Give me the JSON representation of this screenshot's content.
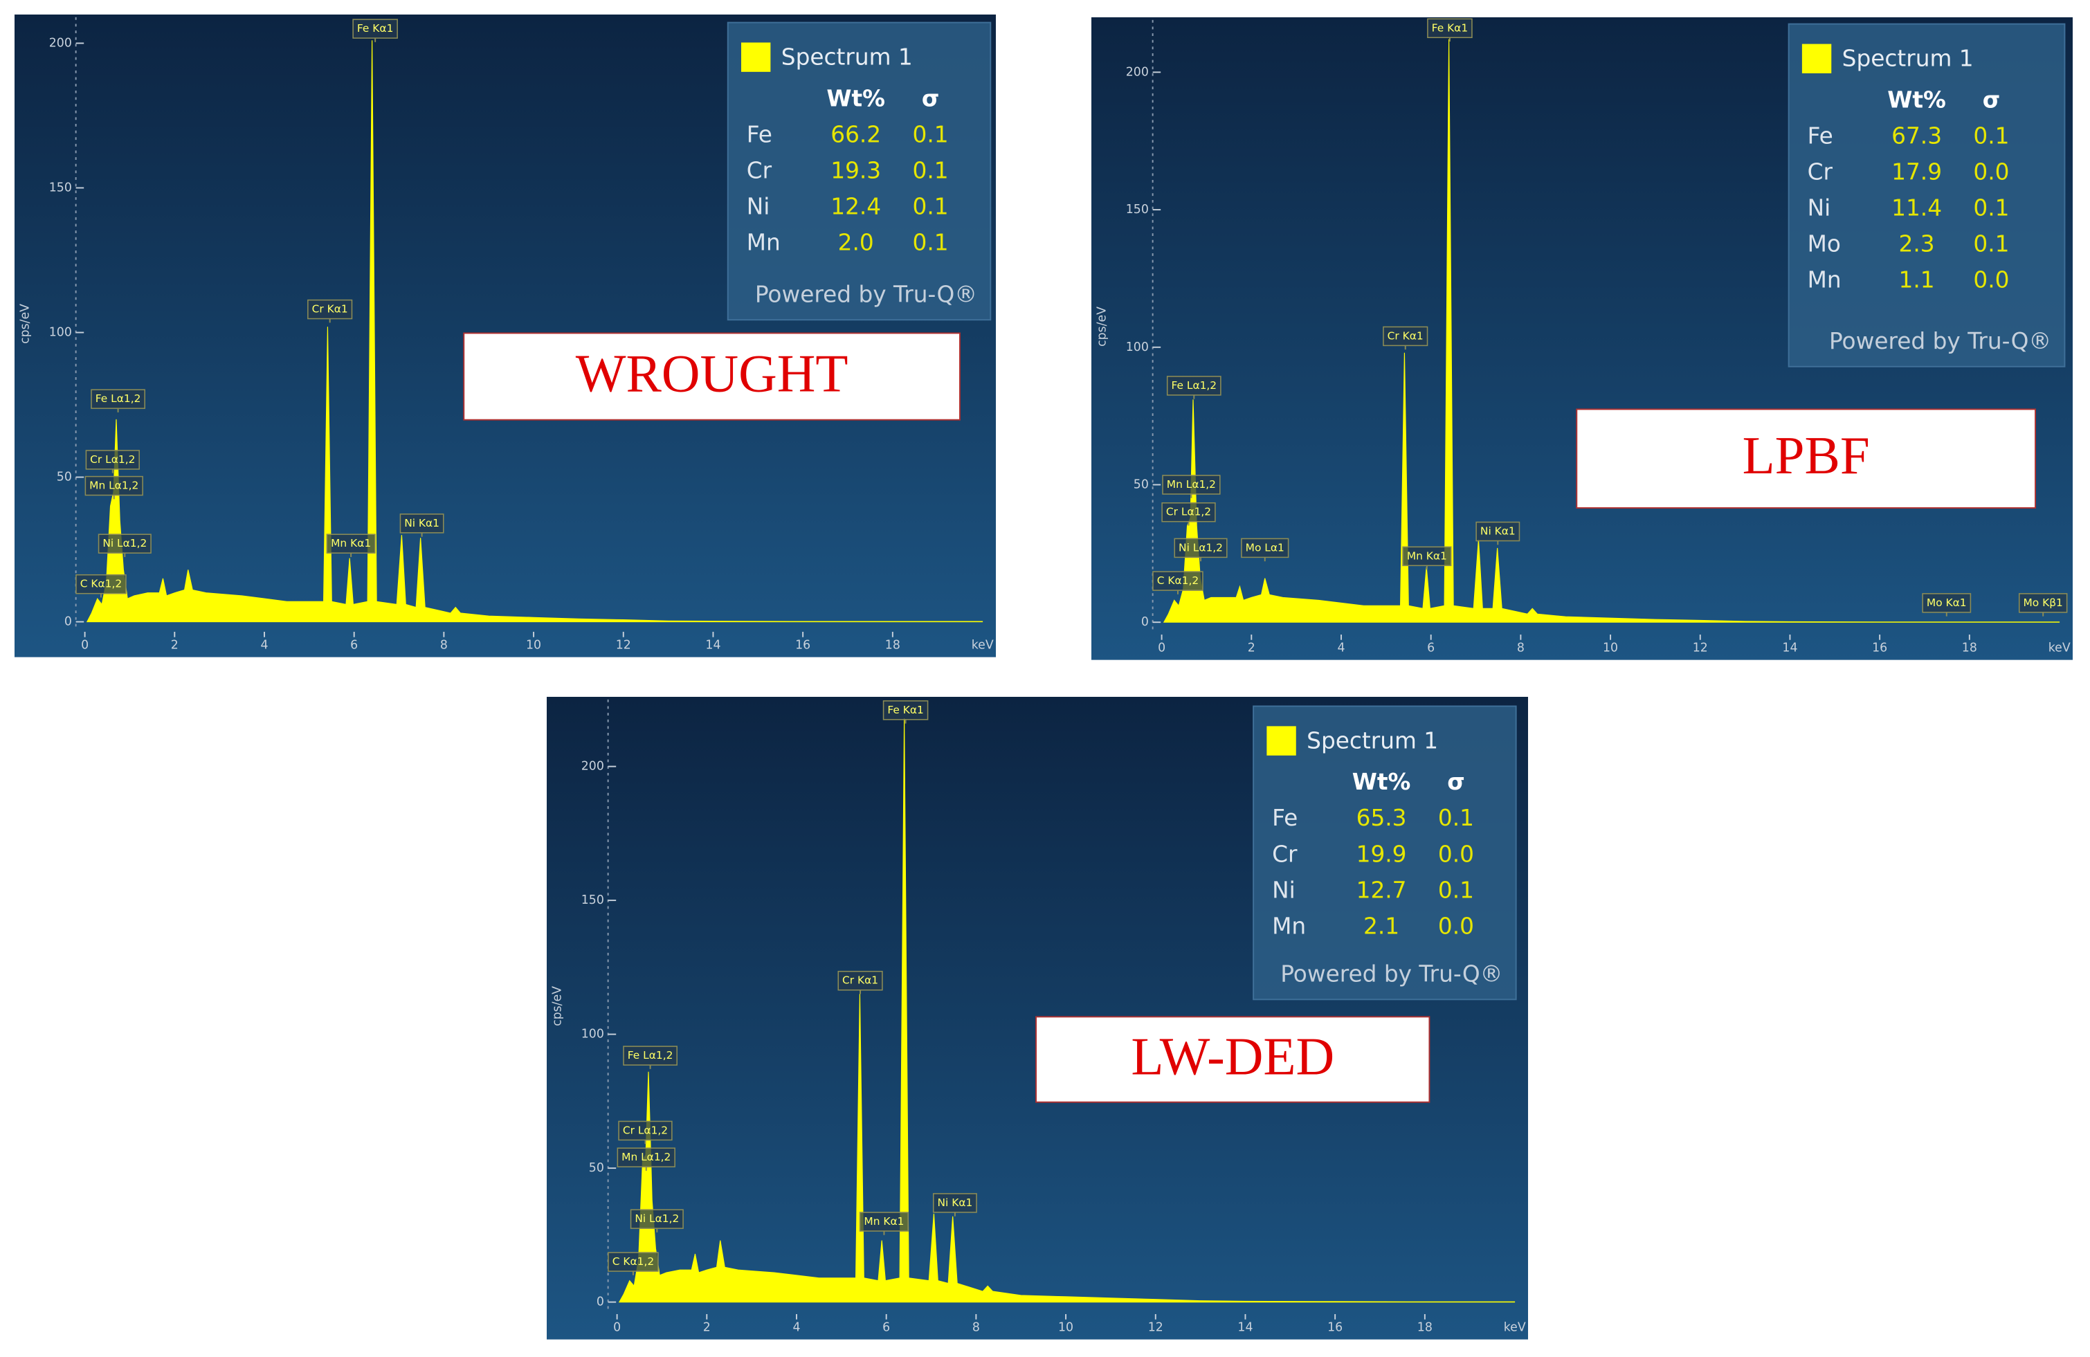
{
  "chart_data": [
    {
      "type": "area",
      "label": "WROUGHT",
      "xlabel": "keV",
      "ylabel": "cps/eV",
      "xlim": [
        -0.2,
        20.3
      ],
      "ylim": [
        -3,
        209
      ],
      "xticks": [
        0,
        2,
        4,
        6,
        8,
        10,
        12,
        14,
        16,
        18
      ],
      "yticks": [
        0,
        50,
        100,
        150,
        200
      ],
      "x": [
        0.05,
        0.15,
        0.28,
        0.38,
        0.48,
        0.57,
        0.64,
        0.7,
        0.78,
        0.86,
        0.95,
        1.1,
        1.4,
        1.66,
        1.74,
        1.82,
        2.0,
        2.22,
        2.3,
        2.4,
        2.7,
        3.5,
        4.5,
        5.32,
        5.41,
        5.5,
        5.82,
        5.9,
        5.98,
        6.3,
        6.4,
        6.5,
        6.95,
        7.06,
        7.15,
        7.38,
        7.48,
        7.58,
        8.15,
        8.26,
        8.37,
        9,
        10,
        11,
        12,
        13,
        14,
        16,
        18,
        20
      ],
      "series": [
        {
          "name": "Spectrum 1",
          "color": "#ffff00",
          "values": [
            0,
            3,
            8,
            6,
            14,
            40,
            45,
            70,
            35,
            18,
            8,
            9,
            10,
            10,
            15,
            9,
            10,
            11,
            18,
            11,
            10,
            9,
            7,
            7,
            102,
            7,
            6,
            22,
            6,
            7,
            201,
            7,
            6,
            30,
            6,
            5,
            29,
            5,
            3,
            5,
            3,
            2,
            1.5,
            1,
            0.7,
            0.3,
            0.2,
            0.1,
            0.1,
            0.1
          ]
        }
      ],
      "annotations": [
        {
          "text": "Fe Kα1",
          "x": 6.47,
          "y": 205
        },
        {
          "text": "Cr Kα1",
          "x": 5.46,
          "y": 108
        },
        {
          "text": "Fe Lα1,2",
          "x": 0.74,
          "y": 77
        },
        {
          "text": "Cr Lα1,2",
          "x": 0.62,
          "y": 56
        },
        {
          "text": "Mn Lα1,2",
          "x": 0.65,
          "y": 47
        },
        {
          "text": "Ni Lα1,2",
          "x": 0.89,
          "y": 27
        },
        {
          "text": "C Kα1,2",
          "x": 0.36,
          "y": 13
        },
        {
          "text": "Mn Kα1",
          "x": 5.93,
          "y": 27
        },
        {
          "text": "Ni Kα1",
          "x": 7.51,
          "y": 34
        }
      ],
      "table": {
        "columns": [
          "Wt%",
          "σ"
        ],
        "rows": [
          [
            "Fe",
            "66.2",
            "0.1"
          ],
          [
            "Cr",
            "19.3",
            "0.1"
          ],
          [
            "Ni",
            "12.4",
            "0.1"
          ],
          [
            "Mn",
            "2.0",
            "0.1"
          ]
        ]
      },
      "footer": "Powered by Tru-Q®"
    },
    {
      "type": "area",
      "label": "LPBF",
      "xlabel": "keV",
      "ylabel": "cps/eV",
      "xlim": [
        -0.2,
        20.3
      ],
      "ylim": [
        -4,
        219
      ],
      "xticks": [
        0,
        2,
        4,
        6,
        8,
        10,
        12,
        14,
        16,
        18
      ],
      "yticks": [
        0,
        50,
        100,
        150,
        200
      ],
      "x": [
        0.05,
        0.15,
        0.28,
        0.38,
        0.48,
        0.57,
        0.64,
        0.7,
        0.78,
        0.86,
        0.95,
        1.1,
        1.4,
        1.66,
        1.74,
        1.82,
        2.0,
        2.22,
        2.3,
        2.4,
        2.7,
        3.5,
        4.5,
        5.32,
        5.41,
        5.5,
        5.82,
        5.9,
        5.98,
        6.3,
        6.4,
        6.5,
        6.95,
        7.06,
        7.15,
        7.38,
        7.48,
        7.58,
        8.15,
        8.26,
        8.37,
        9,
        10,
        11,
        12,
        13,
        14,
        16,
        18,
        20
      ],
      "series": [
        {
          "name": "Spectrum 1",
          "color": "#ffff00",
          "values": [
            0,
            3,
            8,
            6,
            12,
            35,
            38,
            81,
            35,
            16,
            8,
            9,
            9,
            9,
            13,
            8,
            9,
            10,
            16,
            10,
            9,
            8,
            6,
            6,
            98,
            6,
            5,
            20,
            5,
            6,
            212,
            6,
            5,
            30,
            5,
            5,
            27,
            5,
            3,
            5,
            3,
            2,
            1.5,
            1,
            0.7,
            0.3,
            0.2,
            0.1,
            0.1,
            0.1
          ]
        }
      ],
      "annotations": [
        {
          "text": "Fe Kα1",
          "x": 6.42,
          "y": 216
        },
        {
          "text": "Cr Kα1",
          "x": 5.43,
          "y": 104
        },
        {
          "text": "Fe Lα1,2",
          "x": 0.72,
          "y": 86
        },
        {
          "text": "Mn Lα1,2",
          "x": 0.66,
          "y": 50
        },
        {
          "text": "Cr Lα1,2",
          "x": 0.6,
          "y": 40
        },
        {
          "text": "Ni Lα1,2",
          "x": 0.87,
          "y": 27
        },
        {
          "text": "Mo Lα1",
          "x": 2.3,
          "y": 27
        },
        {
          "text": "C Kα1,2",
          "x": 0.36,
          "y": 15
        },
        {
          "text": "Mn Kα1",
          "x": 5.91,
          "y": 24
        },
        {
          "text": "Ni Kα1",
          "x": 7.49,
          "y": 33
        },
        {
          "text": "Mo Kα1",
          "x": 17.49,
          "y": 7
        },
        {
          "text": "Mo Kβ1",
          "x": 19.64,
          "y": 7
        }
      ],
      "table": {
        "columns": [
          "Wt%",
          "σ"
        ],
        "rows": [
          [
            "Fe",
            "67.3",
            "0.1"
          ],
          [
            "Cr",
            "17.9",
            "0.0"
          ],
          [
            "Ni",
            "11.4",
            "0.1"
          ],
          [
            "Mo",
            "2.3",
            "0.1"
          ],
          [
            "Mn",
            "1.1",
            "0.0"
          ]
        ]
      },
      "footer": "Powered by Tru-Q®"
    },
    {
      "type": "area",
      "label": "LW-DED",
      "xlabel": "keV",
      "ylabel": "cps/eV",
      "xlim": [
        -0.2,
        20.3
      ],
      "ylim": [
        -4,
        225
      ],
      "xticks": [
        0,
        2,
        4,
        6,
        8,
        10,
        12,
        14,
        16,
        18
      ],
      "yticks": [
        0,
        50,
        100,
        150,
        200
      ],
      "x": [
        0.05,
        0.15,
        0.28,
        0.38,
        0.48,
        0.57,
        0.64,
        0.7,
        0.78,
        0.86,
        0.95,
        1.1,
        1.4,
        1.66,
        1.74,
        1.82,
        2.0,
        2.22,
        2.3,
        2.4,
        2.7,
        3.5,
        4.5,
        5.32,
        5.41,
        5.5,
        5.82,
        5.9,
        5.98,
        6.3,
        6.4,
        6.5,
        6.95,
        7.06,
        7.15,
        7.38,
        7.48,
        7.58,
        8.15,
        8.26,
        8.37,
        9,
        10,
        11,
        12,
        13,
        14,
        16,
        18,
        20
      ],
      "series": [
        {
          "name": "Spectrum 1",
          "color": "#ffff00",
          "values": [
            0,
            3,
            8,
            6,
            16,
            53,
            55,
            86,
            38,
            20,
            10,
            11,
            12,
            12,
            18,
            11,
            12,
            13,
            23,
            13,
            12,
            11,
            9,
            9,
            115,
            9,
            8,
            23,
            8,
            9,
            218,
            9,
            8,
            33,
            8,
            7,
            32,
            7,
            4,
            6,
            4,
            2.5,
            2,
            1.5,
            1,
            0.5,
            0.3,
            0.2,
            0.1,
            0.1
          ]
        }
      ],
      "annotations": [
        {
          "text": "Fe Kα1",
          "x": 6.43,
          "y": 221
        },
        {
          "text": "Cr Kα1",
          "x": 5.42,
          "y": 120
        },
        {
          "text": "Fe Lα1,2",
          "x": 0.74,
          "y": 92
        },
        {
          "text": "Cr Lα1,2",
          "x": 0.63,
          "y": 64
        },
        {
          "text": "Mn Lα1,2",
          "x": 0.65,
          "y": 54
        },
        {
          "text": "Ni Lα1,2",
          "x": 0.89,
          "y": 31
        },
        {
          "text": "C Kα1,2",
          "x": 0.36,
          "y": 15
        },
        {
          "text": "Mn Kα1",
          "x": 5.95,
          "y": 30
        },
        {
          "text": "Ni Kα1",
          "x": 7.53,
          "y": 37
        }
      ],
      "table": {
        "columns": [
          "Wt%",
          "σ"
        ],
        "rows": [
          [
            "Fe",
            "65.3",
            "0.1"
          ],
          [
            "Cr",
            "19.9",
            "0.0"
          ],
          [
            "Ni",
            "12.7",
            "0.1"
          ],
          [
            "Mn",
            "2.1",
            "0.0"
          ]
        ]
      },
      "footer": "Powered by Tru-Q®"
    }
  ]
}
